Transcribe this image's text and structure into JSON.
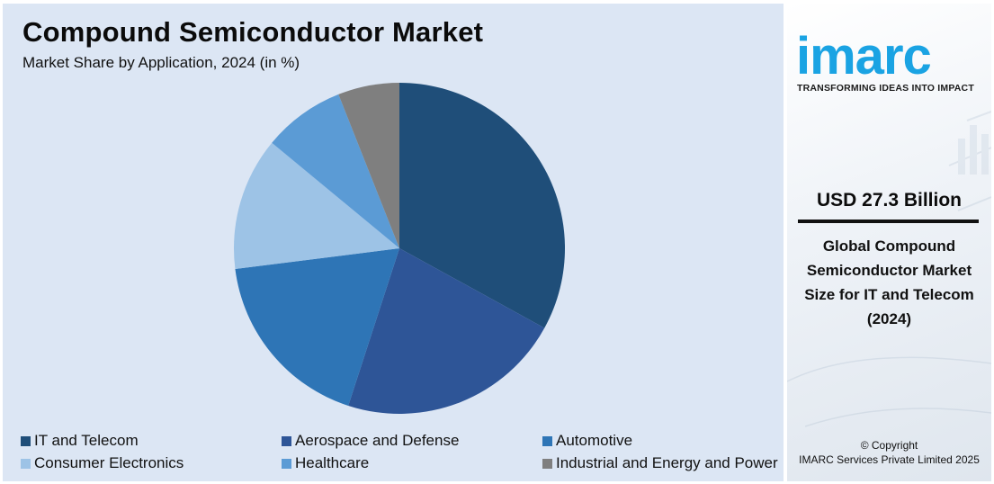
{
  "title": "Compound Semiconductor Market",
  "subtitle": "Market Share by Application, 2024 (in %)",
  "chart_data": {
    "type": "pie",
    "title": "Compound Semiconductor Market",
    "subtitle": "Market Share by Application, 2024 (in %)",
    "categories": [
      "IT and Telecom",
      "Aerospace and Defense",
      "Automotive",
      "Consumer Electronics",
      "Healthcare",
      "Industrial and Energy and Power"
    ],
    "values": [
      33,
      22,
      18,
      13,
      8,
      6
    ],
    "colors": [
      "#1f4e79",
      "#2e5597",
      "#2e75b6",
      "#9dc3e6",
      "#5b9bd5",
      "#7f7f7f"
    ],
    "legend_position": "bottom"
  },
  "sidebar": {
    "logo": "imarc",
    "tagline": "TRANSFORMING IDEAS INTO IMPACT",
    "value": "USD 27.3 Billion",
    "description": "Global Compound Semiconductor Market Size for IT and Telecom (2024)",
    "copyright_line1": "© Copyright",
    "copyright_line2": "IMARC Services Private Limited 2025",
    "logo_color": "#1aa3e3"
  }
}
